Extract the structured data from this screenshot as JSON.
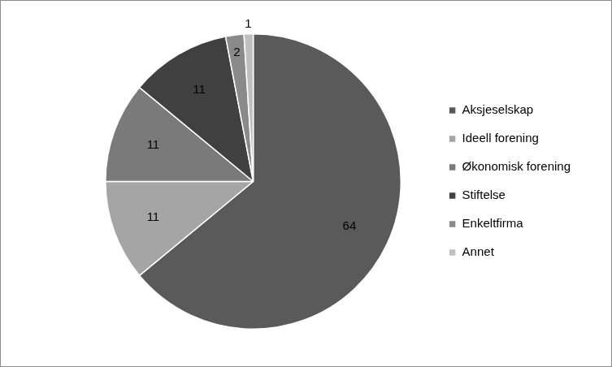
{
  "chart_data": {
    "type": "pie",
    "categories": [
      "Aksjeselskap",
      "Ideell forening",
      "Økonomisk forening",
      "Stiftelse",
      "Enkeltfirma",
      "Annet"
    ],
    "values": [
      64,
      11,
      11,
      11,
      2,
      1
    ],
    "colors": [
      "#5a5a5a",
      "#a5a5a5",
      "#7a7a7a",
      "#404040",
      "#8a8a8a",
      "#c0c0c0"
    ],
    "legend": "right",
    "data_labels": true
  }
}
